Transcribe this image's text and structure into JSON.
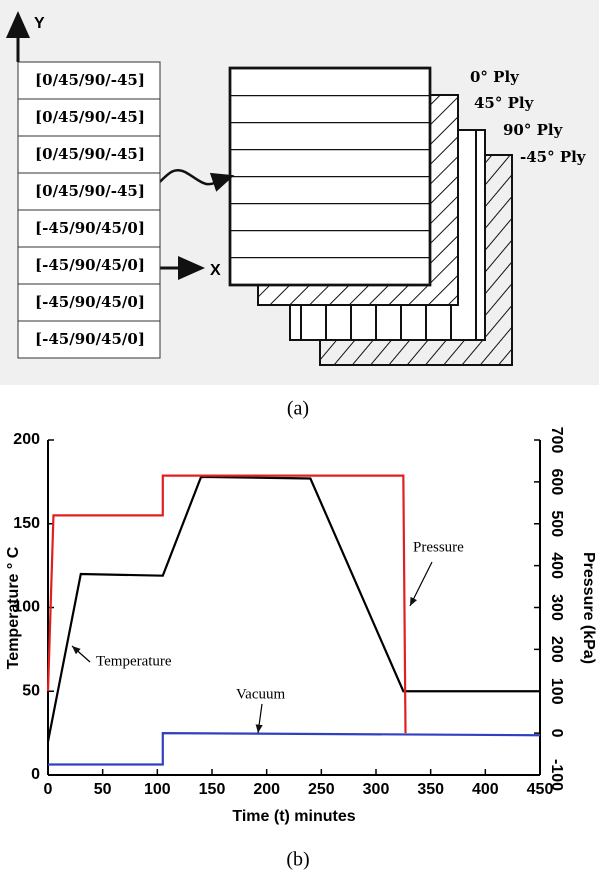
{
  "diagram": {
    "y_axis_label": "Y",
    "x_axis_label": "X",
    "stack": [
      "[0/45/90/-45]",
      "[0/45/90/-45]",
      "[0/45/90/-45]",
      "[0/45/90/-45]",
      "[-45/90/45/0]",
      "[-45/90/45/0]",
      "[-45/90/45/0]",
      "[-45/90/45/0]"
    ],
    "plies": [
      "0° Ply",
      "45° Ply",
      "90° Ply",
      "-45° Ply"
    ],
    "caption": "(a)"
  },
  "chart_data": {
    "type": "line",
    "x_label": "Time (t) minutes",
    "y_label": "Temperature ° C",
    "y2_label": "Pressure (kPa)",
    "xlim": [
      0,
      450
    ],
    "xticks": [
      0,
      50,
      100,
      150,
      200,
      250,
      300,
      350,
      400,
      450
    ],
    "ylim": [
      0,
      200
    ],
    "yticks": [
      0,
      50,
      100,
      150,
      200
    ],
    "y2lim": [
      -100,
      700
    ],
    "y2ticks": [
      -100,
      0,
      100,
      200,
      300,
      400,
      500,
      600,
      700
    ],
    "series": [
      {
        "name": "Temperature",
        "color": "#000000",
        "x": [
          0,
          30,
          105,
          140,
          240,
          325,
          450
        ],
        "values": [
          20,
          120,
          119,
          178,
          177,
          50,
          50
        ]
      },
      {
        "name": "Pressure",
        "color": "#e02020",
        "axis": "y2",
        "x": [
          0,
          5,
          105,
          105,
          325,
          327
        ],
        "values": [
          100,
          520,
          520,
          615,
          615,
          0
        ]
      },
      {
        "name": "Vacuum",
        "color": "#3040c0",
        "axis": "y2",
        "x": [
          0,
          105,
          105,
          450
        ],
        "values": [
          -75,
          -75,
          0,
          -5
        ]
      }
    ],
    "caption": "(b)"
  }
}
